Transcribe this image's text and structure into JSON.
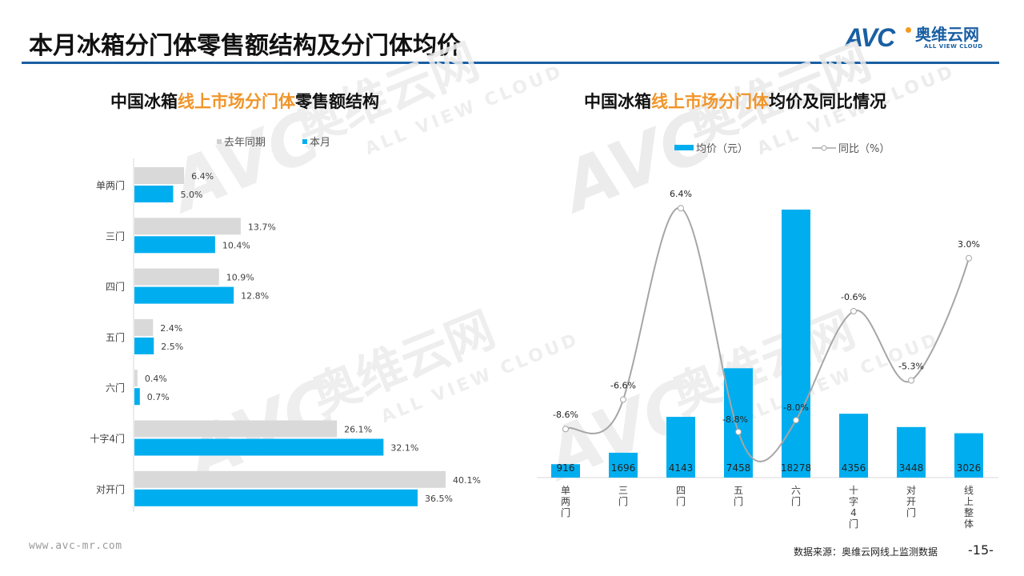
{
  "page": {
    "title": "本月冰箱分门体零售额结构及分门体均价",
    "logo": {
      "brand": "AVC",
      "cn": "奥维云网",
      "en": "ALL VIEW CLOUD"
    },
    "footer": {
      "url": "www.avc-mr.com",
      "source": "数据来源：奥维云网线上监测数据",
      "page_number": "-15-"
    },
    "watermark": {
      "brand": "AVC",
      "cn": "奥维云网",
      "en": "ALL VIEW CLOUD"
    }
  },
  "colors": {
    "accent": "#00aeef",
    "last_year": "#d9d9d9",
    "line": "#a6a6a6",
    "title_highlight": "#f0952a",
    "rule": "#1a5fa3"
  },
  "chart_data": [
    {
      "type": "bar",
      "orientation": "horizontal",
      "title_parts": [
        "中国冰箱",
        "线上市场分门体",
        "零售额结构"
      ],
      "title": "中国冰箱线上市场分门体零售额结构",
      "legend": [
        "去年同期",
        "本月"
      ],
      "legend_position": "top",
      "categories": [
        "单两门",
        "三门",
        "四门",
        "五门",
        "六门",
        "十字4门",
        "对开门"
      ],
      "series": [
        {
          "name": "去年同期",
          "values": [
            6.4,
            13.7,
            10.9,
            2.4,
            0.4,
            26.1,
            40.1
          ],
          "labels": [
            "6.4%",
            "13.7%",
            "10.9%",
            "2.4%",
            "0.4%",
            "26.1%",
            "40.1%"
          ]
        },
        {
          "name": "本月",
          "values": [
            5.0,
            10.4,
            12.8,
            2.5,
            0.7,
            32.1,
            36.5
          ],
          "labels": [
            "5.0%",
            "10.4%",
            "12.8%",
            "2.5%",
            "0.7%",
            "32.1%",
            "36.5%"
          ]
        }
      ],
      "unit": "%",
      "xlim": [
        0,
        45
      ],
      "grid": false
    },
    {
      "type": "bar+line",
      "title_parts": [
        "中国冰箱",
        "线上市场分门体",
        "均价及同比情况"
      ],
      "title": "中国冰箱线上市场分门体均价及同比情况",
      "legend": [
        "均价（元）",
        "同比（%）"
      ],
      "legend_position": "top",
      "categories": [
        "单两门",
        "三门",
        "四门",
        "五门",
        "六门",
        "十字4门",
        "对开门",
        "线上整体"
      ],
      "series": [
        {
          "name": "均价（元）",
          "type": "bar",
          "values": [
            916,
            1696,
            4143,
            7458,
            18278,
            4356,
            3448,
            3026
          ],
          "labels": [
            "916",
            "1696",
            "4143",
            "7458",
            "18278",
            "4356",
            "3448",
            "3026"
          ]
        },
        {
          "name": "同比（%）",
          "type": "line",
          "smooth": true,
          "values": [
            -8.6,
            -6.6,
            6.4,
            -8.8,
            -8.0,
            -0.6,
            -5.3,
            3.0
          ],
          "labels": [
            "-8.6%",
            "-6.6%",
            "6.4%",
            "-8.8%",
            "-8.0%",
            "-0.6%",
            "-5.3%",
            "3.0%"
          ]
        }
      ],
      "ylim_bar": [
        0,
        20000
      ],
      "ylim_line": [
        -12,
        8
      ],
      "grid": false
    }
  ]
}
